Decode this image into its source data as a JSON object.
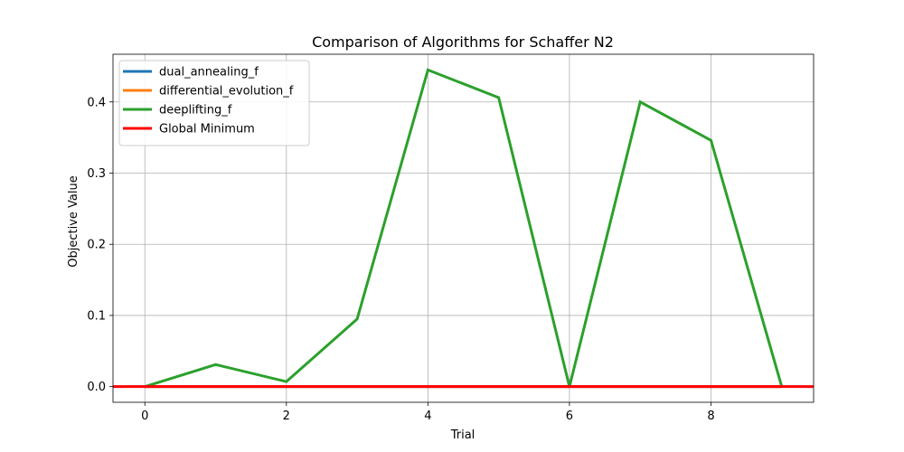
{
  "chart_data": {
    "type": "line",
    "title": "Comparison of Algorithms for Schaffer N2",
    "xlabel": "Trial",
    "ylabel": "Objective Value",
    "xlim": [
      -0.45,
      9.45
    ],
    "ylim": [
      -0.022,
      0.467
    ],
    "x_ticks": [
      0,
      2,
      4,
      6,
      8
    ],
    "y_ticks": [
      0.0,
      0.1,
      0.2,
      0.3,
      0.4
    ],
    "x_tick_labels": [
      "0",
      "2",
      "4",
      "6",
      "8"
    ],
    "y_tick_labels": [
      "0.0",
      "0.1",
      "0.2",
      "0.3",
      "0.4"
    ],
    "grid": true,
    "legend_position": "top-left",
    "x": [
      0,
      1,
      2,
      3,
      4,
      5,
      6,
      7,
      8,
      9
    ],
    "series": [
      {
        "name": "dual_annealing_f",
        "color": "#1f77b4",
        "values": [
          0,
          0,
          0,
          0,
          0,
          0,
          0,
          0,
          0,
          0
        ]
      },
      {
        "name": "differential_evolution_f",
        "color": "#ff7f0e",
        "values": [
          0,
          0,
          0,
          0,
          0,
          0,
          0,
          0,
          0,
          0
        ]
      },
      {
        "name": "deeplifting_f",
        "color": "#2ca02c",
        "values": [
          0.0,
          0.031,
          0.007,
          0.095,
          0.445,
          0.406,
          0.0,
          0.4,
          0.346,
          0.0
        ]
      }
    ],
    "hline": {
      "name": "Global Minimum",
      "y": 0.0,
      "color": "#ff0000"
    }
  }
}
